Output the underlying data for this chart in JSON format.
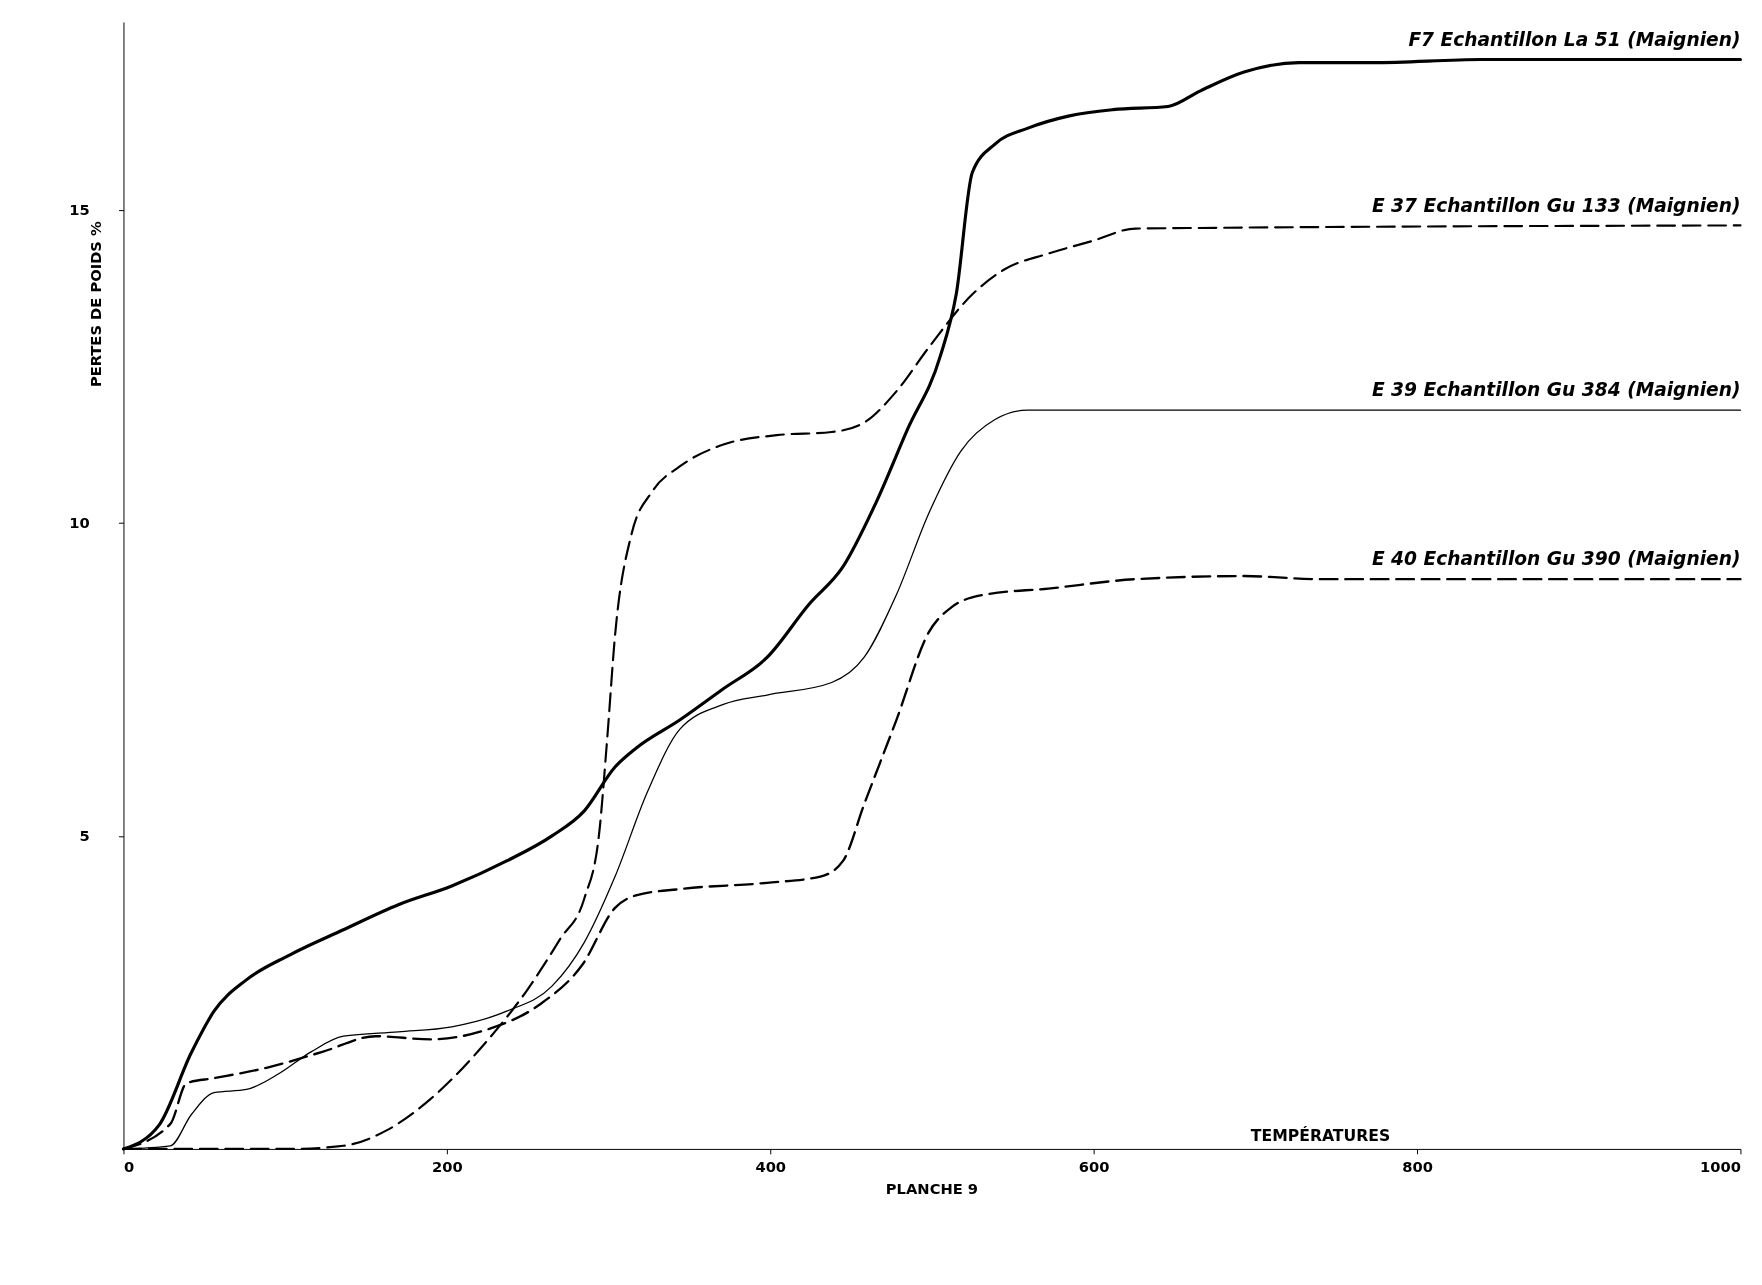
{
  "chart_data": {
    "type": "line",
    "xlabel": "TEMPÉRATURES",
    "ylabel": "PERTES DE POIDS %",
    "annotations": [
      "PLANCHE 9"
    ],
    "xlim": [
      0,
      1000
    ],
    "ylim": [
      0,
      18
    ],
    "xticks": [
      0,
      200,
      400,
      600,
      800,
      1000
    ],
    "yticks": [
      5,
      10,
      15
    ],
    "grid": false,
    "marker": "none",
    "series": [
      {
        "name": "F7  Echantillon  La 51 (Maignien)",
        "color": "#000000",
        "line_style": "solid",
        "x": [
          0,
          22,
          42,
          56,
          76,
          103,
          136,
          170,
          203,
          237,
          265,
          285,
          304,
          317,
          344,
          371,
          398,
          424,
          445,
          465,
          485,
          505,
          515,
          525,
          539,
          559,
          585,
          612,
          646,
          666,
          693,
          727,
          773,
          840,
          1000
        ],
        "values": [
          0,
          0.38,
          1.54,
          2.2,
          2.7,
          3.1,
          3.5,
          3.9,
          4.2,
          4.6,
          5.0,
          5.4,
          6.1,
          6.4,
          6.85,
          7.35,
          7.85,
          8.7,
          9.3,
          10.3,
          11.5,
          12.65,
          13.65,
          15.6,
          16.05,
          16.3,
          16.5,
          16.6,
          16.65,
          16.9,
          17.2,
          17.35,
          17.35,
          17.4,
          17.4
        ]
      },
      {
        "name": "E 37 Echantillon Gu 133 (Maignien)",
        "color": "#000000",
        "line_style": "dashed",
        "x": [
          0,
          103,
          136,
          163,
          190,
          224,
          250,
          270,
          285,
          294,
          299,
          304,
          314,
          327,
          344,
          371,
          404,
          438,
          458,
          478,
          498,
          525,
          545,
          572,
          599,
          626,
          1000
        ],
        "values": [
          0,
          0,
          0.05,
          0.3,
          0.8,
          1.7,
          2.55,
          3.35,
          4.0,
          5.0,
          6.5,
          8.2,
          9.8,
          10.5,
          10.9,
          11.25,
          11.4,
          11.45,
          11.6,
          12.1,
          12.8,
          13.65,
          14.05,
          14.3,
          14.5,
          14.7,
          14.75
        ]
      },
      {
        "name": "E 39  Echantillon  Gu 384 (Maignien)",
        "color": "#000000",
        "line_style": "solid",
        "x": [
          0,
          29,
          42,
          56,
          76,
          96,
          116,
          136,
          170,
          203,
          237,
          265,
          285,
          304,
          324,
          344,
          371,
          398,
          438,
          458,
          478,
          498,
          518,
          539,
          559,
          1000
        ],
        "values": [
          0,
          0.05,
          0.55,
          0.9,
          0.95,
          1.2,
          1.55,
          1.8,
          1.87,
          1.95,
          2.2,
          2.6,
          3.3,
          4.35,
          5.7,
          6.7,
          7.1,
          7.25,
          7.45,
          7.85,
          8.85,
          10.15,
          11.15,
          11.65,
          11.8,
          11.8
        ]
      },
      {
        "name": "E 40 Echantillon Gu 390 (Maignien)",
        "color": "#000000",
        "line_style": "dashed",
        "x": [
          0,
          29,
          39,
          56,
          89,
          123,
          156,
          190,
          224,
          257,
          284,
          304,
          317,
          344,
          398,
          431,
          445,
          458,
          478,
          498,
          512,
          532,
          572,
          626,
          693,
          740,
          1000
        ],
        "values": [
          0,
          0.4,
          1.05,
          1.13,
          1.3,
          1.55,
          1.8,
          1.75,
          1.9,
          2.3,
          2.95,
          3.85,
          4.05,
          4.15,
          4.25,
          4.35,
          4.6,
          5.5,
          6.85,
          8.25,
          8.65,
          8.85,
          8.95,
          9.1,
          9.15,
          9.1,
          9.1
        ]
      }
    ]
  }
}
